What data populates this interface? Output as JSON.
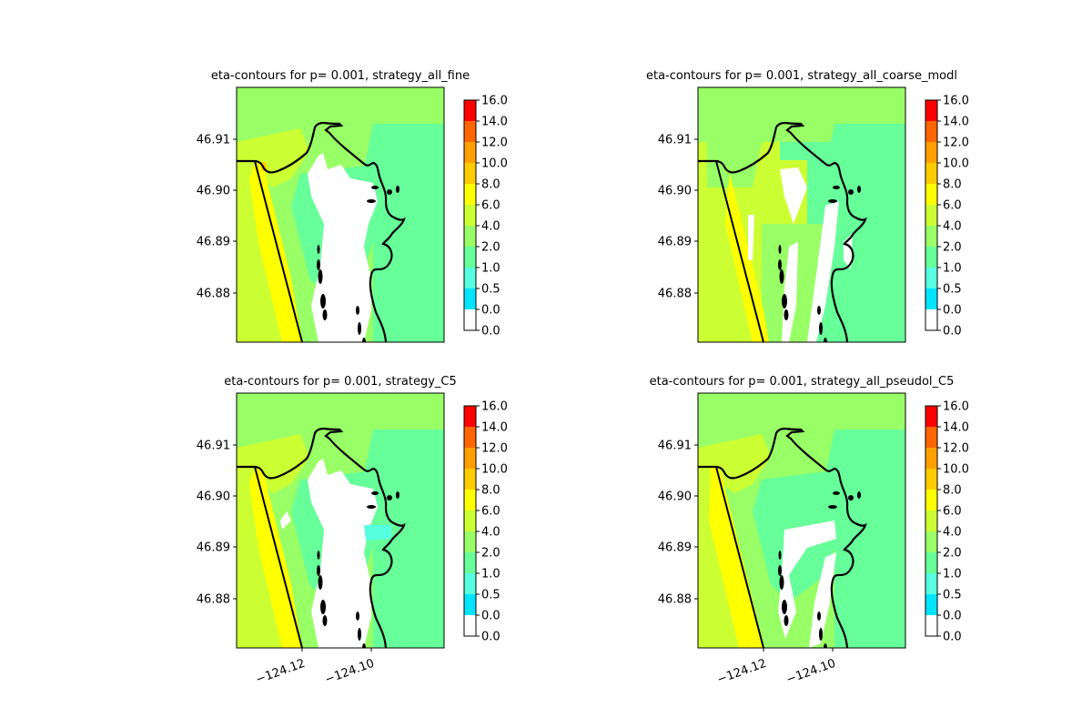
{
  "figure": {
    "colors": {
      "level_fills": [
        "#ffffff",
        "#00e5ff",
        "#55ffdf",
        "#66ff99",
        "#99ff66",
        "#ccff33",
        "#ffff00",
        "#ffcc00",
        "#ffa000",
        "#ff6600",
        "#ff3300",
        "#ff0000"
      ],
      "coastline": "#000000"
    }
  },
  "chart_data": [
    {
      "type": "heatmap",
      "title": "eta-contours for p= 0.001, strategy_all_fine",
      "y_ticks": [
        "46.91",
        "46.90",
        "46.89",
        "46.88"
      ],
      "x_ticks": [],
      "colorbar_ticks": [
        "0.0",
        "0.0",
        "0.5",
        "1.0",
        "2.0",
        "4.0",
        "6.0",
        "8.0",
        "10.0",
        "12.0",
        "14.0",
        "16.0"
      ],
      "ylim": [
        46.87,
        46.9195
      ],
      "xlim": [
        -124.135,
        -124.0945
      ]
    },
    {
      "type": "heatmap",
      "title": "eta-contours for p= 0.001, strategy_all_coarse_modl",
      "y_ticks": [
        "46.91",
        "46.90",
        "46.89",
        "46.88"
      ],
      "x_ticks": [],
      "colorbar_ticks": [
        "0.0",
        "0.0",
        "0.5",
        "1.0",
        "2.0",
        "4.0",
        "6.0",
        "8.0",
        "10.0",
        "12.0",
        "14.0",
        "16.0"
      ],
      "ylim": [
        46.87,
        46.9195
      ],
      "xlim": [
        -124.135,
        -124.0945
      ]
    },
    {
      "type": "heatmap",
      "title": "eta-contours for p= 0.001, strategy_C5",
      "y_ticks": [
        "46.91",
        "46.90",
        "46.89",
        "46.88"
      ],
      "x_ticks": [
        "−124.12",
        "−124.10"
      ],
      "colorbar_ticks": [
        "0.0",
        "0.0",
        "0.5",
        "1.0",
        "2.0",
        "4.0",
        "6.0",
        "8.0",
        "10.0",
        "12.0",
        "14.0",
        "16.0"
      ],
      "ylim": [
        46.87,
        46.9195
      ],
      "xlim": [
        -124.135,
        -124.0945
      ]
    },
    {
      "type": "heatmap",
      "title": "eta-contours for p= 0.001, strategy_all_pseudol_C5",
      "y_ticks": [
        "46.91",
        "46.90",
        "46.89",
        "46.88"
      ],
      "x_ticks": [
        "−124.12",
        "−124.10"
      ],
      "colorbar_ticks": [
        "0.0",
        "0.0",
        "0.5",
        "1.0",
        "2.0",
        "4.0",
        "6.0",
        "8.0",
        "10.0",
        "12.0",
        "14.0",
        "16.0"
      ],
      "ylim": [
        46.87,
        46.9195
      ],
      "xlim": [
        -124.135,
        -124.0945
      ]
    }
  ]
}
